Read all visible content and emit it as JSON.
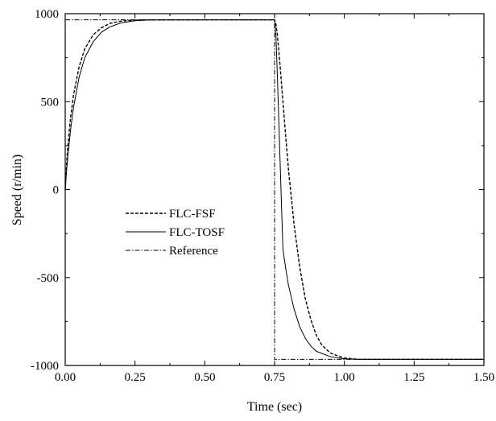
{
  "chart_data": {
    "type": "line",
    "title": "",
    "xlabel": "Time (sec)",
    "ylabel": "Speed (r/min)",
    "xlim": [
      0,
      1.5
    ],
    "ylim": [
      -1000,
      1000
    ],
    "xticks": [
      "0.00",
      "0.25",
      "0.50",
      "0.75",
      "1.00",
      "1.25",
      "1.50"
    ],
    "yticks": [
      "1000",
      "500",
      "0",
      "-500",
      "-1000"
    ],
    "grid": false,
    "legend_position": "center-left",
    "series": [
      {
        "name": "FLC-FSF",
        "style": "dashed",
        "color": "#000000",
        "points": [
          [
            0,
            0
          ],
          [
            0.005,
            150
          ],
          [
            0.01,
            260
          ],
          [
            0.02,
            420
          ],
          [
            0.03,
            540
          ],
          [
            0.05,
            700
          ],
          [
            0.07,
            800
          ],
          [
            0.1,
            880
          ],
          [
            0.13,
            920
          ],
          [
            0.16,
            945
          ],
          [
            0.2,
            958
          ],
          [
            0.25,
            963
          ],
          [
            0.3,
            965
          ],
          [
            0.5,
            965
          ],
          [
            0.75,
            965
          ],
          [
            0.755,
            940
          ],
          [
            0.76,
            880
          ],
          [
            0.77,
            700
          ],
          [
            0.78,
            500
          ],
          [
            0.79,
            300
          ],
          [
            0.8,
            110
          ],
          [
            0.82,
            -200
          ],
          [
            0.84,
            -440
          ],
          [
            0.86,
            -620
          ],
          [
            0.88,
            -740
          ],
          [
            0.9,
            -830
          ],
          [
            0.92,
            -885
          ],
          [
            0.95,
            -930
          ],
          [
            1.0,
            -958
          ],
          [
            1.05,
            -965
          ],
          [
            1.1,
            -965
          ],
          [
            1.5,
            -965
          ]
        ]
      },
      {
        "name": "FLC-TOSF",
        "style": "solid",
        "color": "#000000",
        "points": [
          [
            0,
            0
          ],
          [
            0.005,
            110
          ],
          [
            0.01,
            200
          ],
          [
            0.02,
            350
          ],
          [
            0.03,
            470
          ],
          [
            0.05,
            640
          ],
          [
            0.07,
            750
          ],
          [
            0.1,
            840
          ],
          [
            0.13,
            895
          ],
          [
            0.16,
            925
          ],
          [
            0.2,
            948
          ],
          [
            0.25,
            960
          ],
          [
            0.3,
            964
          ],
          [
            0.5,
            965
          ],
          [
            0.75,
            965
          ],
          [
            0.755,
            870
          ],
          [
            0.76,
            650
          ],
          [
            0.765,
            400
          ],
          [
            0.77,
            150
          ],
          [
            0.775,
            -100
          ],
          [
            0.78,
            -340
          ],
          [
            0.79,
            -450
          ],
          [
            0.8,
            -545
          ],
          [
            0.82,
            -680
          ],
          [
            0.84,
            -780
          ],
          [
            0.86,
            -845
          ],
          [
            0.88,
            -890
          ],
          [
            0.9,
            -920
          ],
          [
            0.95,
            -950
          ],
          [
            1.0,
            -962
          ],
          [
            1.05,
            -965
          ],
          [
            1.5,
            -965
          ]
        ]
      },
      {
        "name": "Reference",
        "style": "dash-dot",
        "color": "#000000",
        "points": [
          [
            0,
            965
          ],
          [
            0.75,
            965
          ],
          [
            0.75,
            -965
          ],
          [
            1.5,
            -965
          ]
        ]
      }
    ]
  }
}
